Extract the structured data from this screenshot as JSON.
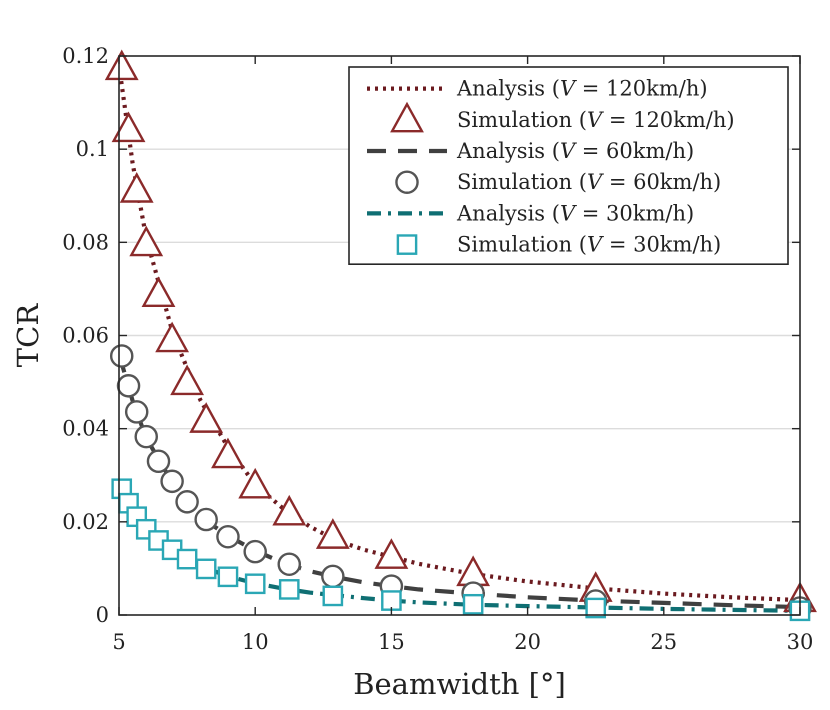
{
  "chart_data": {
    "type": "line",
    "title": "",
    "xlabel": "Beamwidth [°]",
    "ylabel": "TCR",
    "xlim": [
      5,
      30
    ],
    "ylim": [
      0,
      0.12
    ],
    "xticks": [
      5,
      10,
      15,
      20,
      25,
      30
    ],
    "xtick_labels": [
      "5",
      "10",
      "15",
      "20",
      "25",
      "30"
    ],
    "yticks": [
      0,
      0.02,
      0.04,
      0.06,
      0.08,
      0.1,
      0.12
    ],
    "ytick_labels": [
      "0",
      "0.02",
      "0.04",
      "0.06",
      "0.08",
      "0.1",
      "0.12"
    ],
    "grid": "horizontal",
    "legend_position": "top-right",
    "series": [
      {
        "name": "Analysis (V = 120km/h)",
        "legend_prefix": "Analysis (",
        "legend_var": "V",
        "legend_suffix": " = 120km/h)",
        "kind": "line",
        "style": "dotted",
        "color": "#6b1a1f",
        "x": [
          5,
          5.5,
          6,
          7,
          8,
          9,
          10,
          11,
          12,
          13,
          14,
          15,
          16,
          18,
          20,
          22.5,
          25,
          27.5,
          30
        ],
        "y": [
          0.118,
          0.097,
          0.081,
          0.06,
          0.046,
          0.036,
          0.028,
          0.023,
          0.019,
          0.016,
          0.014,
          0.0125,
          0.011,
          0.0088,
          0.0072,
          0.0057,
          0.0046,
          0.0038,
          0.0032
        ]
      },
      {
        "name": "Simulation (V = 120km/h)",
        "legend_prefix": "Simulation (",
        "legend_var": "V",
        "legend_suffix": " = 120km/h)",
        "kind": "marker",
        "marker": "triangle",
        "color": "#8b2a2a",
        "x": [
          5.1,
          5.35,
          5.65,
          6.0,
          6.45,
          6.95,
          7.5,
          8.2,
          9.0,
          10.0,
          11.25,
          12.85,
          15.0,
          18.0,
          22.5,
          30.0
        ],
        "y": [
          0.1175,
          0.1042,
          0.0912,
          0.0797,
          0.0688,
          0.0591,
          0.0499,
          0.0418,
          0.0342,
          0.0277,
          0.0219,
          0.0169,
          0.0126,
          0.0089,
          0.0055,
          0.0033
        ]
      },
      {
        "name": "Analysis (V = 60km/h)",
        "legend_prefix": "Analysis (",
        "legend_var": "V",
        "legend_suffix": " = 60km/h)",
        "kind": "line",
        "style": "dashed",
        "color": "#404040",
        "x": [
          5,
          5.5,
          6,
          7,
          8,
          9,
          10,
          11,
          12,
          13,
          14,
          15,
          16,
          18,
          20,
          22.5,
          25,
          27.5,
          30
        ],
        "y": [
          0.056,
          0.046,
          0.038,
          0.028,
          0.021,
          0.017,
          0.0138,
          0.0113,
          0.0094,
          0.0081,
          0.007,
          0.0062,
          0.0055,
          0.0046,
          0.0038,
          0.0031,
          0.0026,
          0.0021,
          0.0017
        ]
      },
      {
        "name": "Simulation (V = 60km/h)",
        "legend_prefix": "Simulation (",
        "legend_var": "V",
        "legend_suffix": " = 60km/h)",
        "kind": "marker",
        "marker": "circle",
        "color": "#555555",
        "x": [
          5.1,
          5.35,
          5.65,
          6.0,
          6.45,
          6.95,
          7.5,
          8.2,
          9.0,
          10.0,
          11.25,
          12.85,
          15.0,
          18.0,
          22.5,
          30.0
        ],
        "y": [
          0.0556,
          0.0492,
          0.0436,
          0.0383,
          0.033,
          0.0287,
          0.0243,
          0.0205,
          0.0168,
          0.0136,
          0.0109,
          0.0083,
          0.0062,
          0.0047,
          0.003,
          0.0015
        ]
      },
      {
        "name": "Analysis (V = 30km/h)",
        "legend_prefix": "Analysis (",
        "legend_var": "V",
        "legend_suffix": " = 30km/h)",
        "kind": "line",
        "style": "dashdot",
        "color": "#0f6f73",
        "x": [
          5,
          5.5,
          6,
          7,
          8,
          9,
          10,
          11,
          12,
          13,
          14,
          15,
          16,
          18,
          20,
          22.5,
          25,
          27.5,
          30
        ],
        "y": [
          0.027,
          0.022,
          0.018,
          0.0135,
          0.0105,
          0.0083,
          0.0068,
          0.0057,
          0.0048,
          0.0042,
          0.0036,
          0.0031,
          0.0027,
          0.0022,
          0.0019,
          0.0016,
          0.0013,
          0.0011,
          0.0009
        ]
      },
      {
        "name": "Simulation (V = 30km/h)",
        "legend_prefix": "Simulation (",
        "legend_var": "V",
        "legend_suffix": " = 30km/h)",
        "kind": "marker",
        "marker": "square",
        "color": "#2aa7b5",
        "x": [
          5.1,
          5.35,
          5.65,
          6.0,
          6.45,
          6.95,
          7.5,
          8.2,
          9.0,
          10.0,
          11.25,
          12.85,
          15.0,
          18.0,
          22.5,
          30.0
        ],
        "y": [
          0.0271,
          0.024,
          0.0211,
          0.0184,
          0.016,
          0.014,
          0.012,
          0.0099,
          0.0082,
          0.0067,
          0.0055,
          0.0041,
          0.0031,
          0.0023,
          0.0015,
          0.0009
        ]
      }
    ]
  }
}
